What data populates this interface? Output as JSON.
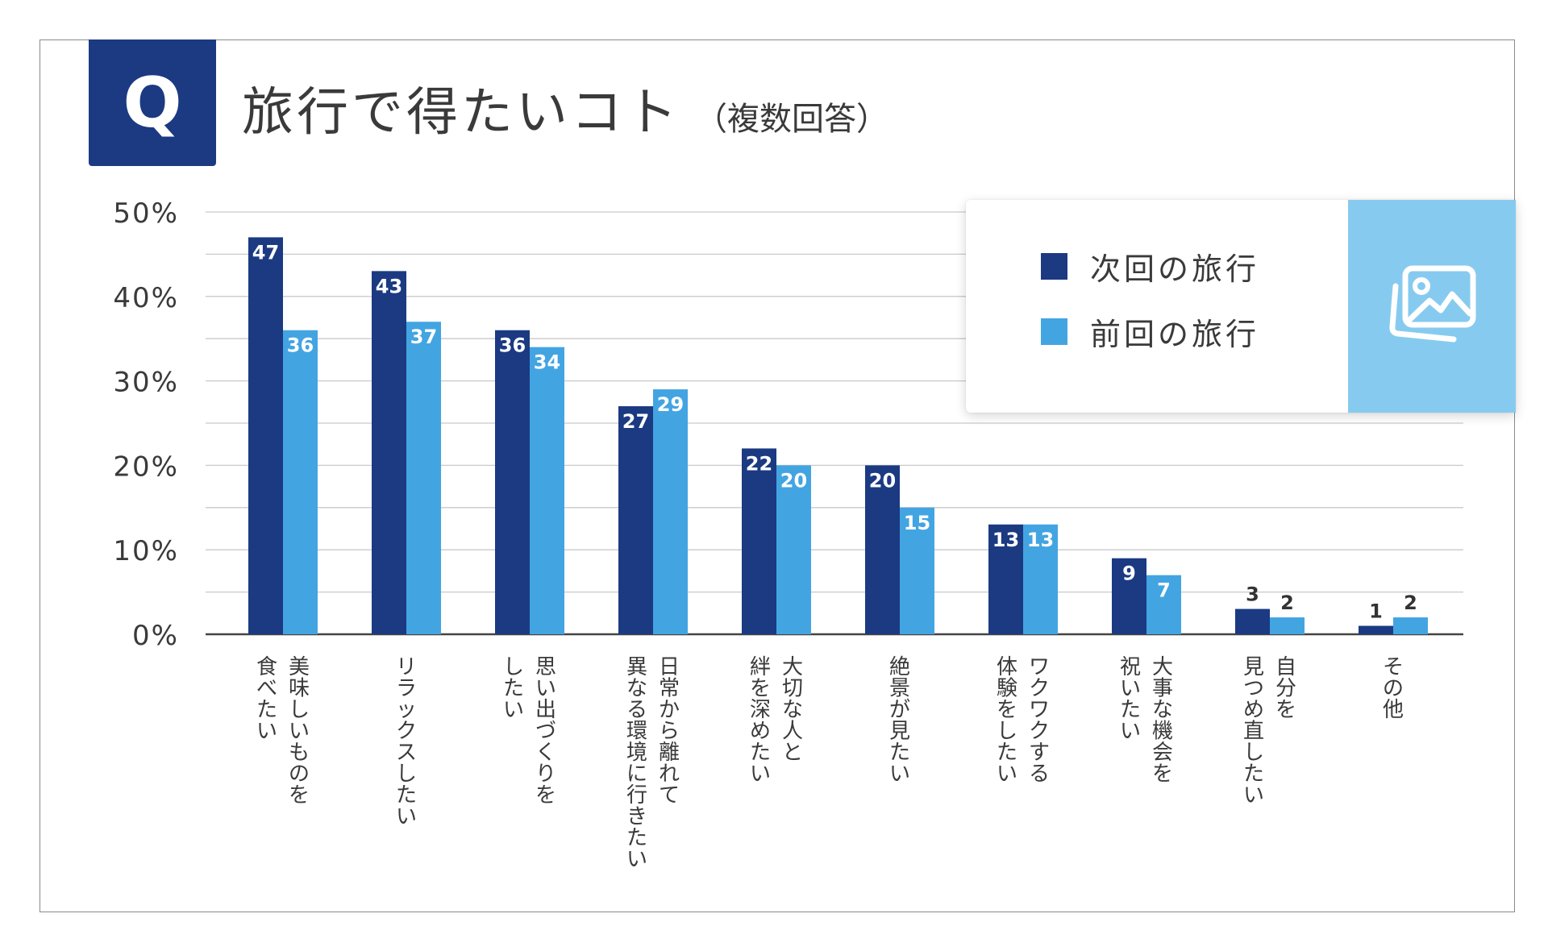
{
  "badge": {
    "letter": "Q"
  },
  "title": {
    "main": "旅行で得たいコト",
    "sub": "（複数回答）"
  },
  "colors": {
    "badge_bg": "#1b3a82",
    "series_next": "#1b3a82",
    "series_prev": "#43a4e2",
    "grid": "#c9c9c9",
    "axis": "#444444",
    "text": "#3a3a3a",
    "image_panel": "#86cbef"
  },
  "legend": {
    "items": [
      {
        "label": "次回の旅行",
        "color": "#1b3a82"
      },
      {
        "label": "前回の旅行",
        "color": "#43a4e2"
      }
    ],
    "image_icon": "image-placeholder-icon"
  },
  "chart_data": {
    "type": "bar",
    "title": "旅行で得たいコト",
    "subtitle": "（複数回答）",
    "xlabel": "",
    "ylabel": "",
    "ylim": [
      0,
      50
    ],
    "yticks": [
      0,
      10,
      20,
      30,
      40,
      50
    ],
    "ytick_labels": [
      "0%",
      "10%",
      "20%",
      "30%",
      "40%",
      "50%"
    ],
    "grid": true,
    "legend_position": "top-right",
    "categories": [
      [
        "美味しいものを",
        "食べたい"
      ],
      [
        "リラックスしたい"
      ],
      [
        "思い出づくりを",
        "したい"
      ],
      [
        "日常から離れて",
        "異なる環境に行きたい"
      ],
      [
        "大切な人と",
        "絆を深めたい"
      ],
      [
        "絶景が見たい"
      ],
      [
        "ワクワクする",
        "体験をしたい"
      ],
      [
        "大事な機会を",
        "祝いたい"
      ],
      [
        "自分を",
        "見つめ直したい"
      ],
      [
        "その他"
      ]
    ],
    "series": [
      {
        "name": "次回の旅行",
        "color": "#1b3a82",
        "values": [
          47,
          43,
          36,
          27,
          22,
          20,
          13,
          9,
          3,
          1
        ]
      },
      {
        "name": "前回の旅行",
        "color": "#43a4e2",
        "values": [
          36,
          37,
          34,
          29,
          20,
          15,
          13,
          7,
          2,
          2
        ]
      }
    ]
  }
}
